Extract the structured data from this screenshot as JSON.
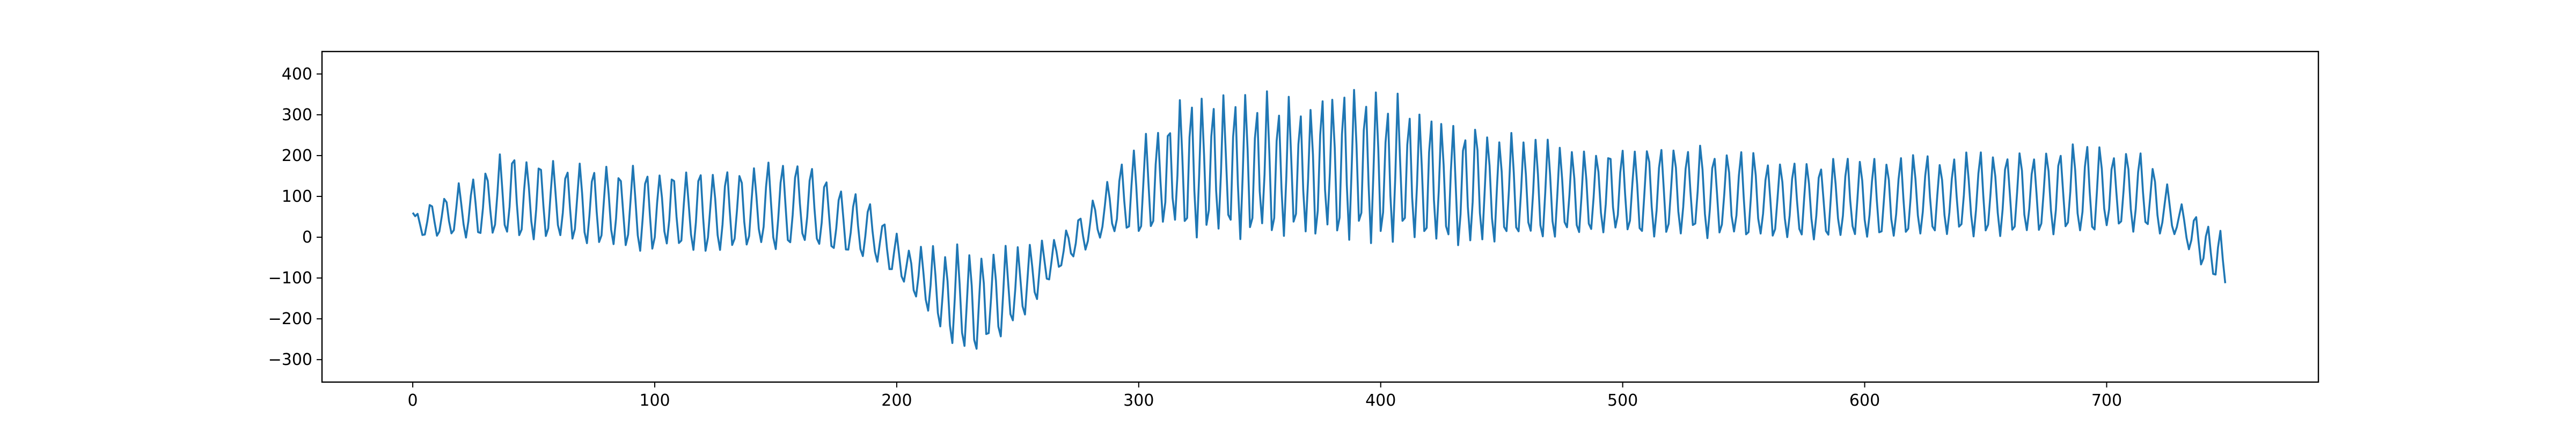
{
  "chart_data": {
    "type": "line",
    "title": "",
    "xlabel": "",
    "ylabel": "",
    "xlim": [
      -37.5,
      787.5
    ],
    "ylim": [
      -355,
      455
    ],
    "x_ticks": [
      0,
      100,
      200,
      300,
      400,
      500,
      600,
      700
    ],
    "x_tick_labels": [
      "0",
      "100",
      "200",
      "300",
      "400",
      "500",
      "600",
      "700"
    ],
    "y_ticks": [
      -300,
      -200,
      -100,
      0,
      100,
      200,
      300,
      400
    ],
    "y_tick_labels": [
      "−300",
      "−200",
      "−100",
      "0",
      "100",
      "200",
      "300",
      "400"
    ],
    "grid": false,
    "legend": "none",
    "series": [
      {
        "color": "#1f77b4",
        "x_start": 0,
        "x_end": 749,
        "envelope": [
          [
            0,
            60,
            -5,
            6
          ],
          [
            40,
            220,
            -30,
            5.5
          ],
          [
            80,
            190,
            -50,
            5.5
          ],
          [
            120,
            175,
            -60,
            5.5
          ],
          [
            160,
            205,
            -55,
            6
          ],
          [
            190,
            90,
            -70,
            6
          ],
          [
            205,
            -20,
            -140,
            5
          ],
          [
            220,
            -15,
            -280,
            5
          ],
          [
            232,
            -10,
            -325,
            5
          ],
          [
            250,
            -15,
            -240,
            5
          ],
          [
            268,
            10,
            -90,
            5
          ],
          [
            285,
            130,
            -20,
            6
          ],
          [
            300,
            250,
            -25,
            5
          ],
          [
            320,
            360,
            -30,
            4.5
          ],
          [
            340,
            380,
            -40,
            4.5
          ],
          [
            370,
            370,
            -55,
            4.5
          ],
          [
            390,
            420,
            -55,
            4.5
          ],
          [
            420,
            320,
            -55,
            4.5
          ],
          [
            450,
            280,
            -50,
            5
          ],
          [
            480,
            230,
            -30,
            5
          ],
          [
            520,
            250,
            -25,
            5.5
          ],
          [
            560,
            210,
            -30,
            5.5
          ],
          [
            600,
            200,
            -25,
            5.5
          ],
          [
            640,
            215,
            -20,
            5.5
          ],
          [
            680,
            235,
            -20,
            5.5
          ],
          [
            715,
            235,
            -20,
            5.5
          ],
          [
            730,
            90,
            -10,
            6
          ],
          [
            742,
            50,
            -115,
            5
          ],
          [
            749,
            30,
            -150,
            5
          ]
        ]
      }
    ]
  }
}
